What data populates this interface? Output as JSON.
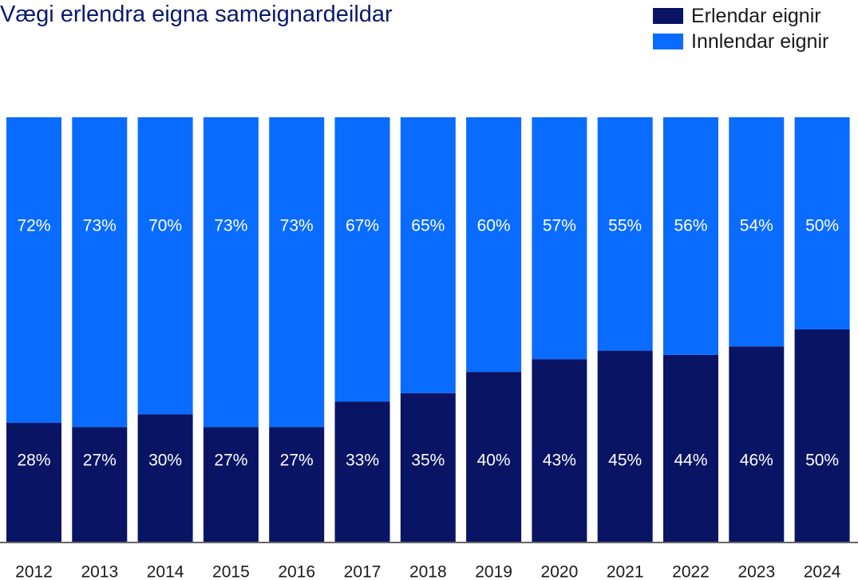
{
  "chart_data": {
    "type": "bar",
    "stacked": true,
    "title": "Vægi erlendra eigna sameignardeildar",
    "categories": [
      "2012",
      "2013",
      "2014",
      "2015",
      "2016",
      "2017",
      "2018",
      "2019",
      "2020",
      "2021",
      "2022",
      "2023",
      "2024"
    ],
    "series": [
      {
        "name": "Erlendar eignir",
        "color": "#0a1464",
        "values": [
          28,
          27,
          30,
          27,
          27,
          33,
          35,
          40,
          43,
          45,
          44,
          46,
          50
        ],
        "labels": [
          "28%",
          "27%",
          "30%",
          "27%",
          "27%",
          "33%",
          "35%",
          "40%",
          "43%",
          "45%",
          "44%",
          "46%",
          "50%"
        ]
      },
      {
        "name": "Innlendar eignir",
        "color": "#0a6cff",
        "values": [
          72,
          73,
          70,
          73,
          73,
          67,
          65,
          60,
          57,
          55,
          56,
          54,
          50
        ],
        "labels": [
          "72%",
          "73%",
          "70%",
          "73%",
          "73%",
          "67%",
          "65%",
          "60%",
          "57%",
          "55%",
          "56%",
          "54%",
          "50%"
        ]
      }
    ],
    "ylim": [
      0,
      100
    ],
    "grid": false,
    "legend_position": "top-right"
  }
}
